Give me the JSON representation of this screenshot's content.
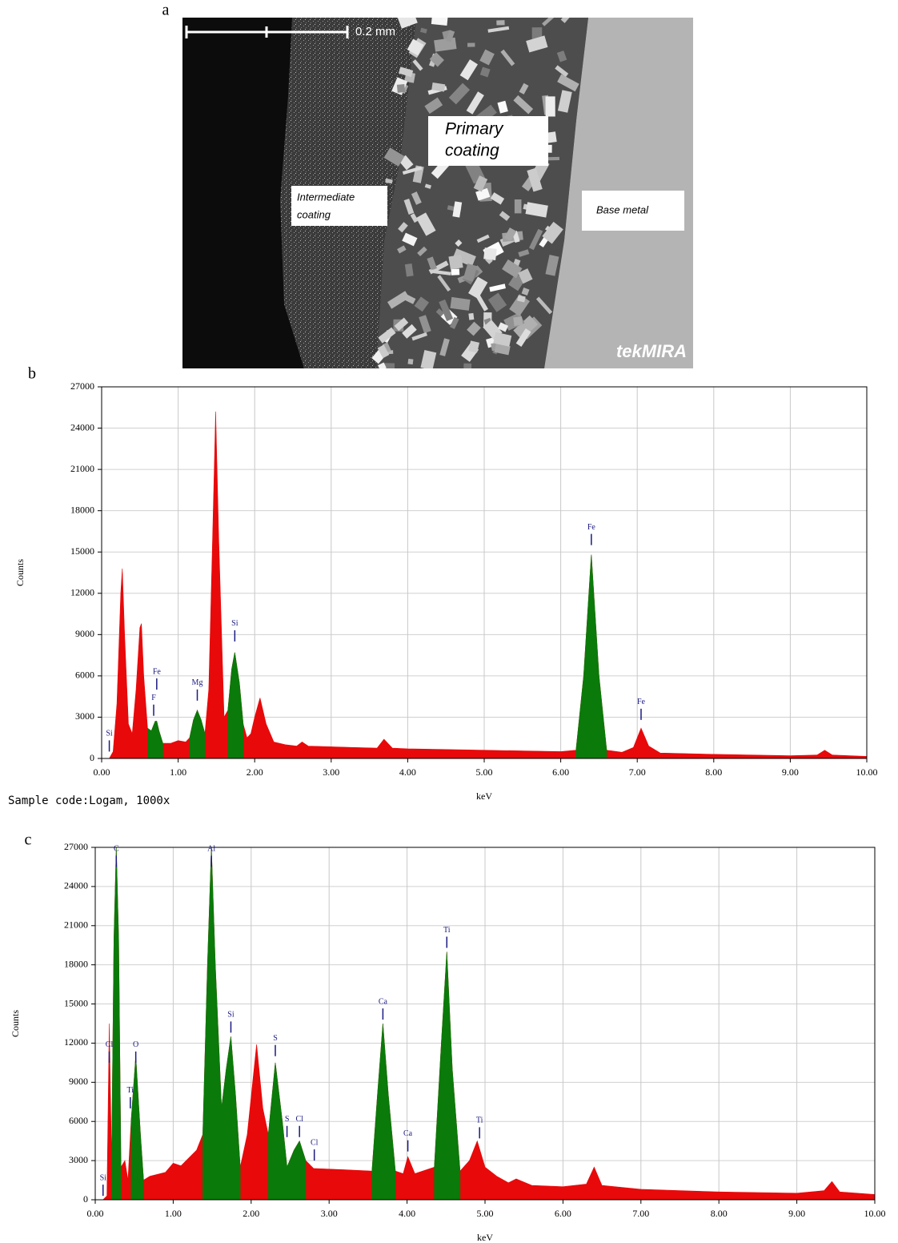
{
  "image": {
    "panel": "a",
    "scale_bar": "0.2 mm",
    "primary_coating": [
      "Primary",
      "coating"
    ],
    "intermediate_coating": [
      "Intermediate",
      "coating"
    ],
    "base_metal": "Base metal",
    "watermark": "tekMIRA"
  },
  "chart_data": [
    {
      "type": "area",
      "panel": "b",
      "xlabel": "keV",
      "ylabel": "Counts",
      "note": "Sample code:Logam, 1000x",
      "x": [
        0,
        0.1,
        0.15,
        0.2,
        0.25,
        0.27,
        0.3,
        0.35,
        0.4,
        0.45,
        0.5,
        0.52,
        0.55,
        0.6,
        0.65,
        0.7,
        0.72,
        0.75,
        0.8,
        0.9,
        1.0,
        1.1,
        1.15,
        1.2,
        1.25,
        1.3,
        1.35,
        1.4,
        1.45,
        1.49,
        1.53,
        1.6,
        1.65,
        1.7,
        1.74,
        1.8,
        1.85,
        1.9,
        1.95,
        2.0,
        2.07,
        2.15,
        2.25,
        2.4,
        2.55,
        2.62,
        2.7,
        3.0,
        3.3,
        3.6,
        3.69,
        3.8,
        4.0,
        4.5,
        5.0,
        5.5,
        6.0,
        6.2,
        6.3,
        6.4,
        6.5,
        6.6,
        6.8,
        6.95,
        7.05,
        7.15,
        7.3,
        8.0,
        9.0,
        9.35,
        9.45,
        9.55,
        10.0
      ],
      "series": [
        {
          "color": "#e8090a",
          "values": [
            0,
            0,
            500,
            4000,
            12000,
            13800,
            9000,
            2500,
            1800,
            5000,
            9500,
            9800,
            6000,
            2200,
            2000,
            2700,
            2700,
            2000,
            1100,
            1100,
            1300,
            1200,
            1500,
            2800,
            3500,
            2800,
            1800,
            5000,
            16000,
            25200,
            16000,
            3000,
            3500,
            6500,
            7700,
            5500,
            2500,
            1500,
            1800,
            3000,
            4400,
            2500,
            1200,
            1000,
            900,
            1200,
            900,
            850,
            800,
            750,
            1400,
            750,
            700,
            650,
            600,
            550,
            500,
            600,
            6000,
            14800,
            6000,
            600,
            450,
            800,
            2200,
            900,
            400,
            300,
            200,
            250,
            600,
            250,
            150
          ]
        },
        {
          "color": "#0a7a0a",
          "values": [
            null,
            null,
            null,
            null,
            null,
            null,
            null,
            null,
            null,
            null,
            null,
            null,
            null,
            2200,
            2000,
            2700,
            2700,
            2000,
            1100,
            null,
            null,
            null,
            1500,
            2800,
            3500,
            2800,
            1800,
            null,
            null,
            null,
            null,
            null,
            3500,
            6500,
            7700,
            5500,
            2500,
            null,
            null,
            null,
            null,
            null,
            null,
            null,
            null,
            null,
            null,
            null,
            null,
            null,
            null,
            null,
            null,
            null,
            null,
            null,
            null,
            600,
            6000,
            14800,
            6000,
            600,
            null,
            null,
            null,
            null,
            null,
            null,
            null,
            null,
            null,
            null,
            null
          ]
        }
      ],
      "annotations": [
        {
          "label": "Si",
          "x": 0.1,
          "y": 500
        },
        {
          "label": "F",
          "x": 0.68,
          "y": 3100
        },
        {
          "label": "Fe",
          "x": 0.72,
          "y": 5000
        },
        {
          "label": "Mg",
          "x": 1.25,
          "y": 4200
        },
        {
          "label": "Si",
          "x": 1.74,
          "y": 8500
        },
        {
          "label": "Fe",
          "x": 6.4,
          "y": 15500
        },
        {
          "label": "Fe",
          "x": 7.05,
          "y": 2800
        }
      ],
      "xlim": [
        0,
        10
      ],
      "ylim": [
        0,
        27000
      ],
      "xticks": [
        {
          "value": 0,
          "label": "0.00"
        },
        {
          "value": 1,
          "label": "1.00"
        },
        {
          "value": 2,
          "label": "2.00"
        },
        {
          "value": 3,
          "label": "3.00"
        },
        {
          "value": 4,
          "label": "4.00"
        },
        {
          "value": 5,
          "label": "5.00"
        },
        {
          "value": 6,
          "label": "6.00"
        },
        {
          "value": 7,
          "label": "7.00"
        },
        {
          "value": 8,
          "label": "8.00"
        },
        {
          "value": 9,
          "label": "9.00"
        },
        {
          "value": 10,
          "label": "10.00"
        }
      ],
      "yticks": [
        0,
        3000,
        6000,
        9000,
        12000,
        15000,
        18000,
        21000,
        24000,
        27000
      ],
      "grid": true
    },
    {
      "type": "area",
      "panel": "c",
      "xlabel": "keV",
      "ylabel": "Counts",
      "x": [
        0,
        0.1,
        0.15,
        0.18,
        0.21,
        0.24,
        0.27,
        0.3,
        0.33,
        0.38,
        0.42,
        0.46,
        0.52,
        0.58,
        0.62,
        0.7,
        0.9,
        1.0,
        1.1,
        1.2,
        1.3,
        1.38,
        1.44,
        1.49,
        1.54,
        1.62,
        1.68,
        1.74,
        1.8,
        1.86,
        1.95,
        2.07,
        2.15,
        2.22,
        2.31,
        2.4,
        2.46,
        2.55,
        2.62,
        2.7,
        2.8,
        3.2,
        3.55,
        3.62,
        3.69,
        3.76,
        3.85,
        3.95,
        4.01,
        4.1,
        4.35,
        4.44,
        4.51,
        4.58,
        4.68,
        4.8,
        4.9,
        5.0,
        5.15,
        5.3,
        5.4,
        5.6,
        6.0,
        6.3,
        6.4,
        6.5,
        7.0,
        8.0,
        9.0,
        9.35,
        9.45,
        9.55,
        10.0
      ],
      "series": [
        {
          "color": "#e8090a",
          "values": [
            0,
            0,
            300,
            13500,
            3000,
            20000,
            27000,
            20000,
            2500,
            3000,
            1500,
            6000,
            11000,
            5000,
            1500,
            1800,
            2100,
            2800,
            2600,
            3200,
            3800,
            5000,
            18000,
            27000,
            18000,
            7000,
            10000,
            12500,
            8000,
            2500,
            5000,
            11900,
            7000,
            5000,
            10500,
            6000,
            2500,
            3800,
            4500,
            3000,
            2400,
            2300,
            2200,
            8000,
            13500,
            8000,
            2200,
            2000,
            3300,
            2000,
            2500,
            12000,
            19000,
            10000,
            2200,
            3000,
            4500,
            2500,
            1800,
            1300,
            1600,
            1100,
            1000,
            1200,
            2500,
            1100,
            800,
            600,
            500,
            700,
            1400,
            600,
            400
          ]
        },
        {
          "color": "#0a7a0a",
          "values": [
            null,
            null,
            null,
            null,
            3000,
            20000,
            27000,
            20000,
            2500,
            null,
            null,
            6000,
            11000,
            5000,
            1500,
            null,
            null,
            null,
            null,
            null,
            null,
            5000,
            18000,
            27000,
            18000,
            7000,
            10000,
            12500,
            8000,
            2500,
            null,
            null,
            null,
            5000,
            10500,
            6000,
            2500,
            3800,
            4500,
            3000,
            null,
            null,
            2200,
            8000,
            13500,
            8000,
            2200,
            null,
            null,
            null,
            2500,
            12000,
            19000,
            10000,
            2200,
            null,
            null,
            null,
            null,
            null,
            null,
            null,
            null,
            null,
            null,
            null,
            null,
            null,
            null,
            null,
            null,
            null,
            null
          ]
        }
      ],
      "annotations": [
        {
          "label": "Si",
          "x": 0.1,
          "y": 300
        },
        {
          "label": "Cl",
          "x": 0.18,
          "y": 10500
        },
        {
          "label": "C",
          "x": 0.27,
          "y": 25500
        },
        {
          "label": "Ti",
          "x": 0.45,
          "y": 7000
        },
        {
          "label": "O",
          "x": 0.52,
          "y": 10500
        },
        {
          "label": "Al",
          "x": 1.49,
          "y": 25500
        },
        {
          "label": "Si",
          "x": 1.74,
          "y": 12800
        },
        {
          "label": "S",
          "x": 2.31,
          "y": 11000
        },
        {
          "label": "S",
          "x": 2.46,
          "y": 4800
        },
        {
          "label": "Cl",
          "x": 2.62,
          "y": 4800
        },
        {
          "label": "Cl",
          "x": 2.81,
          "y": 3000
        },
        {
          "label": "Ca",
          "x": 3.69,
          "y": 13800
        },
        {
          "label": "Ca",
          "x": 4.01,
          "y": 3700
        },
        {
          "label": "Ti",
          "x": 4.51,
          "y": 19300
        },
        {
          "label": "Ti",
          "x": 4.93,
          "y": 4700
        }
      ],
      "xlim": [
        0,
        10
      ],
      "ylim": [
        0,
        27000
      ],
      "xticks": [
        {
          "value": 0,
          "label": "0.00"
        },
        {
          "value": 1,
          "label": "1.00"
        },
        {
          "value": 2,
          "label": "2.00"
        },
        {
          "value": 3,
          "label": "3.00"
        },
        {
          "value": 4,
          "label": "4.00"
        },
        {
          "value": 5,
          "label": "5.00"
        },
        {
          "value": 6,
          "label": "6.00"
        },
        {
          "value": 7,
          "label": "7.00"
        },
        {
          "value": 8,
          "label": "8.00"
        },
        {
          "value": 9,
          "label": "9.00"
        },
        {
          "value": 10,
          "label": "10.00"
        }
      ],
      "yticks": [
        0,
        3000,
        6000,
        9000,
        12000,
        15000,
        18000,
        21000,
        24000,
        27000
      ],
      "grid": true
    }
  ]
}
